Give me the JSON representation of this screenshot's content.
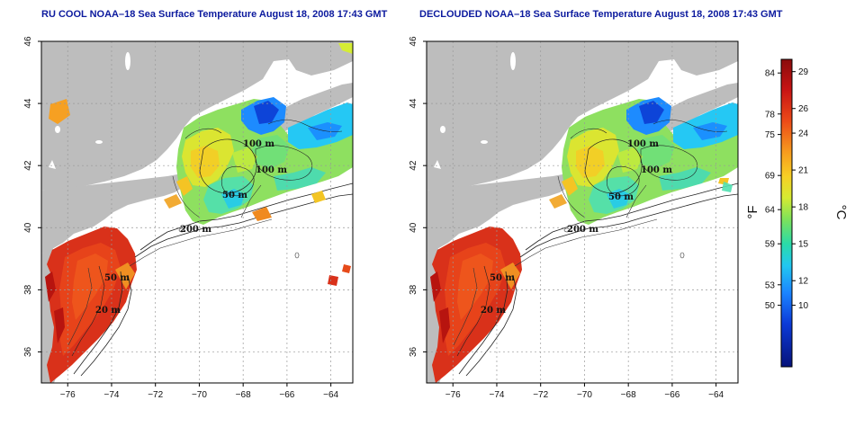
{
  "titles": {
    "left": "RU COOL NOAA–18 Sea Surface Temperature August 18, 2008 17:43 GMT",
    "right": "DECLOUDED NOAA–18 Sea Surface Temperature August 18, 2008 17:43 GMT"
  },
  "axes": {
    "x_ticks": [
      -76,
      -74,
      -72,
      -70,
      -68,
      -66,
      -64
    ],
    "x_tick_labels": [
      "−76",
      "−74",
      "−72",
      "−70",
      "−68",
      "−66",
      "−64"
    ],
    "y_ticks": [
      36,
      38,
      40,
      42,
      44,
      46
    ],
    "y_tick_labels": [
      "36",
      "38",
      "40",
      "42",
      "44",
      "46"
    ],
    "lon_range": [
      -77.2,
      -63.0
    ],
    "lat_range": [
      35.0,
      46.0
    ],
    "grid": "dotted"
  },
  "contour_labels": {
    "left": [
      "100 m",
      "100 m",
      "50 m",
      "200 m",
      "50 m",
      "20 m"
    ],
    "right": [
      "100 m",
      "100 m",
      "50 m",
      "200 m",
      "50 m",
      "20 m"
    ]
  },
  "colorbar": {
    "fahrenheit_ticks": [
      "84",
      "78",
      "75",
      "69",
      "64",
      "59",
      "53",
      "50"
    ],
    "fahrenheit_values": [
      84,
      78,
      75,
      69,
      64,
      59,
      53,
      50
    ],
    "celsius_ticks": [
      "29",
      "26",
      "24",
      "21",
      "18",
      "15",
      "12",
      "10"
    ],
    "celsius_values": [
      29,
      26,
      24,
      21,
      18,
      15,
      12,
      10
    ],
    "range_c": [
      5,
      30
    ],
    "unit_f": "°F",
    "unit_c": "°C",
    "colors": [
      "#08107a",
      "#0a3fd6",
      "#1a90ff",
      "#22d8ee",
      "#48e58a",
      "#c9ee3a",
      "#f6d524",
      "#f69a1c",
      "#e8421a",
      "#a80d0d"
    ]
  },
  "colors": {
    "land": "#bdbdbd",
    "water_nodata": "#ffffff",
    "title": "#0c1a9e"
  }
}
